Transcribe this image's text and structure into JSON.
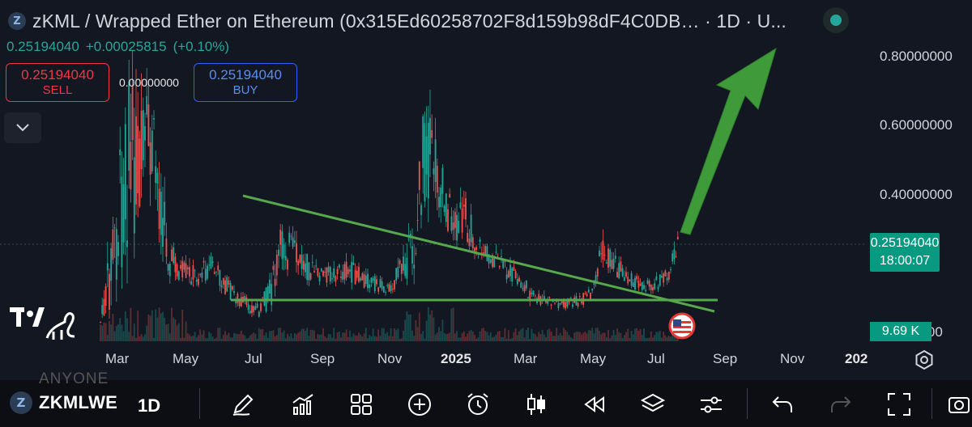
{
  "header": {
    "title": "zKML / Wrapped Ether on Ethereum (0x315Ed60258702F8d159b98dF4C0DB… · 1D · U...",
    "last_price": "0.25194040",
    "change": "+0.00025815",
    "change_pct": "(+0.10%)"
  },
  "trade": {
    "sell_price": "0.25194040",
    "sell_label": "SELL",
    "spread": "0.00000000",
    "buy_price": "0.25194040",
    "buy_label": "BUY"
  },
  "yaxis": {
    "labels": [
      "0.80000000",
      "0.60000000",
      "0.40000000",
      "0000"
    ]
  },
  "price_tag": {
    "price": "0.25194040",
    "countdown": "18:00:07"
  },
  "volume_tag": "9.69 K",
  "xaxis": {
    "labels": [
      "Mar",
      "May",
      "Jul",
      "Sep",
      "Nov",
      "2025",
      "Mar",
      "May",
      "Jul",
      "Sep",
      "Nov",
      "202"
    ]
  },
  "toolbar": {
    "symbol": "ZKMLWE",
    "timeframe": "1D",
    "ghost_text": "ANYONE"
  },
  "chart_data": {
    "type": "candlestick",
    "price_scale": [
      0.8,
      0.6,
      0.4
    ],
    "last": 0.2519404,
    "series": [
      {
        "period": "Mar 2024",
        "approx": [
          0.05,
          0.82
        ]
      },
      {
        "period": "May 2024",
        "approx": [
          0.15,
          0.25
        ]
      },
      {
        "period": "Jul 2024",
        "approx": [
          0.08,
          0.35
        ]
      },
      {
        "period": "Nov 2024",
        "approx": [
          0.15,
          0.7
        ]
      },
      {
        "period": "Mar 2025",
        "approx": [
          0.08,
          0.22
        ]
      },
      {
        "period": "May 2025",
        "approx": [
          0.15,
          0.3
        ]
      },
      {
        "period": "Jul 2025",
        "approx": [
          0.1,
          0.28
        ]
      }
    ],
    "colors": {
      "up": "#26a69a",
      "down": "#ef5350",
      "trendline": "#4caf50",
      "arrow": "#3d9e3d"
    }
  }
}
